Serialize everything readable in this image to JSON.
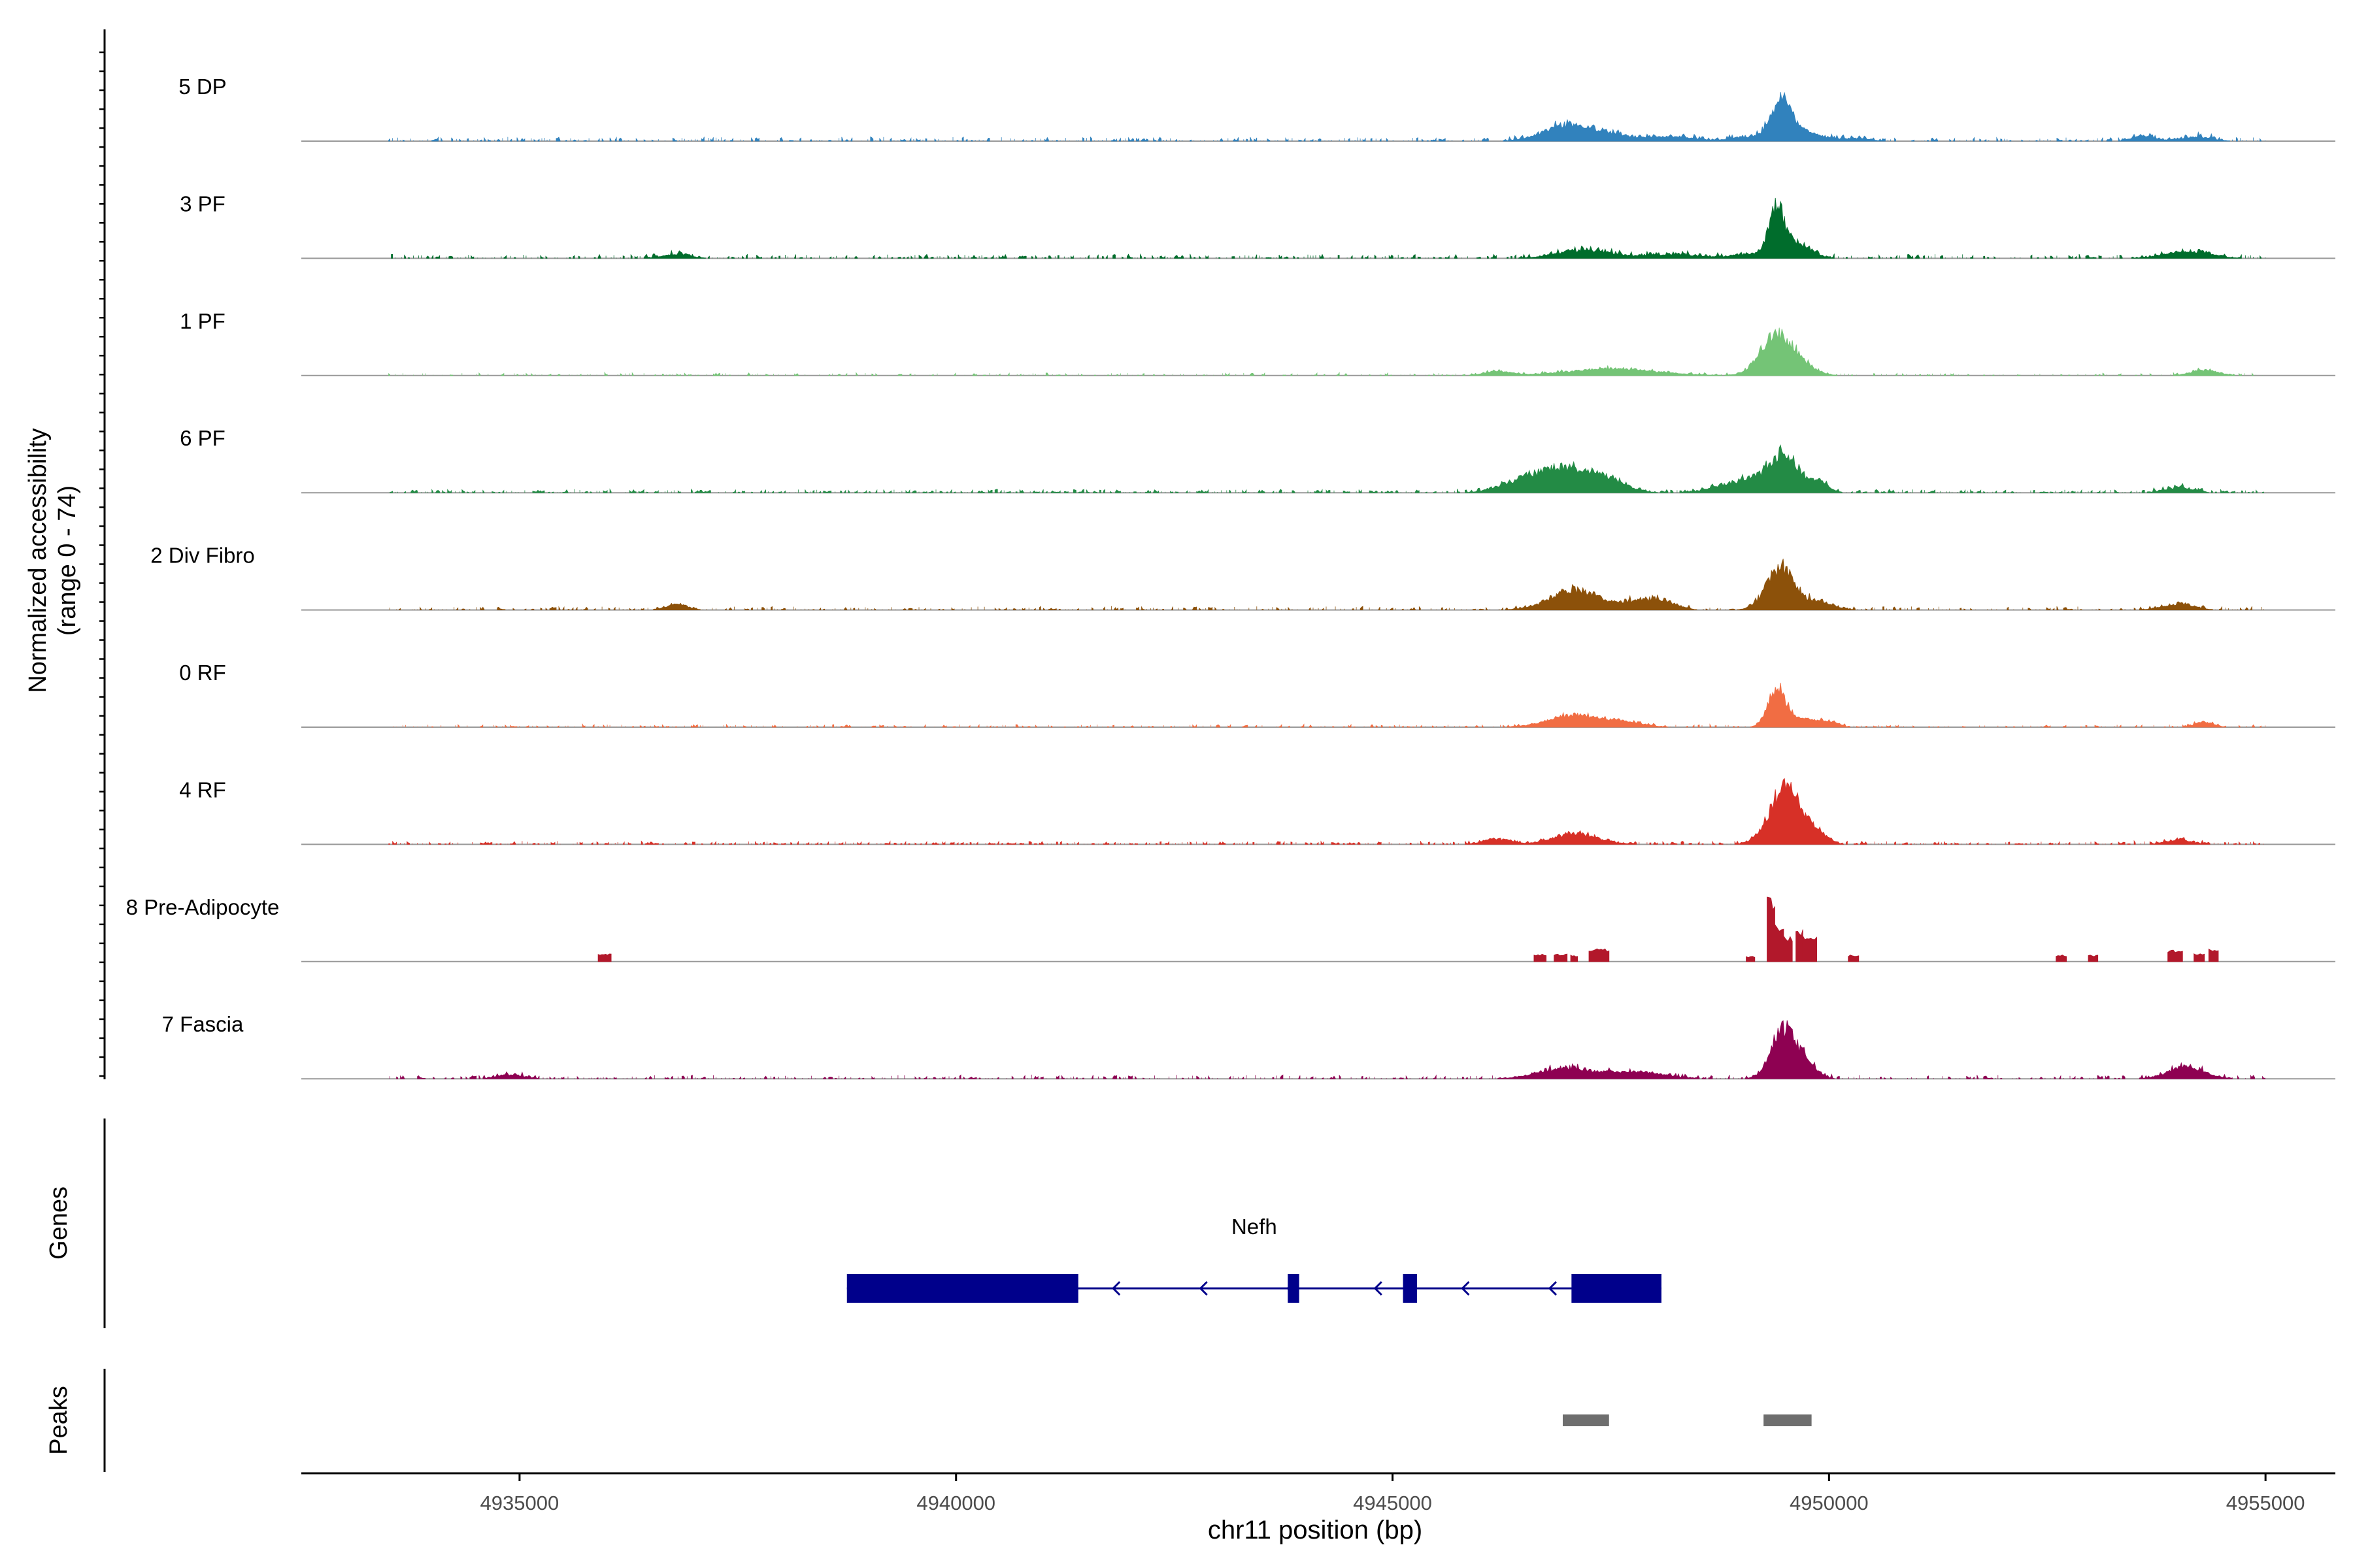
{
  "chart_data": {
    "type": "area",
    "title": "",
    "panels": {
      "coverage_ylabel": [
        "Normalized accessibility",
        "(range 0 - 74)"
      ],
      "genes_label": "Genes",
      "peaks_label": "Peaks"
    },
    "xlabel": "chr11 position (bp)",
    "xlim": [
      4932500,
      4955800
    ],
    "xticks": [
      4935000,
      4940000,
      4945000,
      4950000,
      4955000
    ],
    "ylim": [
      0,
      74
    ],
    "colors": {
      "5 DP": "#3182bd",
      "3 PF": "#006d2c",
      "1 PF": "#74c476",
      "6 PF": "#238b45",
      "2 Div Fibro": "#8c510a",
      "0 RF": "#f16d43",
      "4 RF": "#d73027",
      "8 Pre-Adipocyte": "#b2182b",
      "7 Fascia": "#8e0152",
      "gene": "#00008b",
      "peak": "#6e6e6e",
      "baseline": "#999999",
      "axis": "#000000"
    },
    "tracks": [
      {
        "name": "5 DP",
        "start": 4933500,
        "end": 4955000,
        "baseline": 0.5,
        "noise": 2.4,
        "sparse": 0.55,
        "peaks": [
          [
            4947200,
            350,
            9
          ],
          [
            4946900,
            200,
            5
          ],
          [
            4948200,
            250,
            3
          ],
          [
            4949100,
            220,
            3
          ],
          [
            4949450,
            110,
            28
          ],
          [
            4949700,
            200,
            7
          ],
          [
            4950300,
            150,
            2
          ],
          [
            4953600,
            120,
            4
          ],
          [
            4954200,
            180,
            3
          ]
        ]
      },
      {
        "name": "3 PF",
        "start": 4933500,
        "end": 4955000,
        "baseline": 0.5,
        "noise": 2.4,
        "sparse": 0.5,
        "peaks": [
          [
            4947200,
            300,
            6
          ],
          [
            4948200,
            300,
            3
          ],
          [
            4949400,
            90,
            35
          ],
          [
            4949650,
            150,
            10
          ],
          [
            4949100,
            200,
            3
          ],
          [
            4936800,
            150,
            3
          ],
          [
            4954100,
            250,
            5
          ]
        ]
      },
      {
        "name": "1 PF",
        "start": 4933500,
        "end": 4955000,
        "baseline": 0.3,
        "noise": 1.6,
        "sparse": 0.65,
        "peaks": [
          [
            4947500,
            500,
            5
          ],
          [
            4949400,
            180,
            30
          ],
          [
            4949700,
            150,
            6
          ],
          [
            4946200,
            150,
            3
          ],
          [
            4954300,
            150,
            4
          ]
        ]
      },
      {
        "name": "6 PF",
        "start": 4933500,
        "end": 4955000,
        "baseline": 0.4,
        "noise": 2.0,
        "sparse": 0.45,
        "peaks": [
          [
            4947000,
            300,
            17
          ],
          [
            4946500,
            250,
            8
          ],
          [
            4947500,
            200,
            7
          ],
          [
            4949100,
            300,
            10
          ],
          [
            4949500,
            160,
            26
          ],
          [
            4949900,
            100,
            7
          ],
          [
            4954000,
            150,
            4
          ]
        ]
      },
      {
        "name": "2 Div Fibro",
        "start": 4933500,
        "end": 4955000,
        "baseline": 0.4,
        "noise": 2.0,
        "sparse": 0.55,
        "peaks": [
          [
            4947100,
            280,
            15
          ],
          [
            4947800,
            150,
            6
          ],
          [
            4948100,
            150,
            7
          ],
          [
            4949450,
            160,
            32
          ],
          [
            4949900,
            150,
            6
          ],
          [
            4936800,
            120,
            4
          ],
          [
            4954000,
            180,
            4
          ]
        ]
      },
      {
        "name": "0 RF",
        "start": 4933500,
        "end": 4955000,
        "baseline": 0.3,
        "noise": 1.6,
        "sparse": 0.6,
        "peaks": [
          [
            4947100,
            300,
            9
          ],
          [
            4947700,
            200,
            3
          ],
          [
            4949400,
            100,
            30
          ],
          [
            4949700,
            150,
            6
          ],
          [
            4950000,
            100,
            4
          ],
          [
            4954300,
            100,
            4
          ]
        ]
      },
      {
        "name": "4 RF",
        "start": 4933500,
        "end": 4955000,
        "baseline": 0.4,
        "noise": 1.8,
        "sparse": 0.5,
        "peaks": [
          [
            4947100,
            250,
            8
          ],
          [
            4949500,
            180,
            42
          ],
          [
            4949850,
            120,
            8
          ],
          [
            4946200,
            150,
            4
          ],
          [
            4954000,
            150,
            3
          ]
        ]
      },
      {
        "name": "8 Pre-Adipocyte",
        "start": 4933500,
        "end": 4955000,
        "baseline": 0,
        "noise": 0,
        "sparse": 1,
        "blocks": [
          [
            4935900,
            4936050,
            6
          ],
          [
            4946620,
            4946760,
            6
          ],
          [
            4946850,
            4947000,
            6
          ],
          [
            4947040,
            4947120,
            5
          ],
          [
            4947250,
            4947480,
            10
          ],
          [
            4949050,
            4949150,
            4
          ],
          [
            4949290,
            4949380,
            50
          ],
          [
            4949380,
            4949480,
            28
          ],
          [
            4949480,
            4949580,
            20
          ],
          [
            4949620,
            4949700,
            26
          ],
          [
            4949700,
            4949860,
            20
          ],
          [
            4950220,
            4950340,
            5
          ],
          [
            4952600,
            4952720,
            5
          ],
          [
            4952970,
            4953080,
            5
          ],
          [
            4953880,
            4954050,
            9
          ],
          [
            4954180,
            4954300,
            6
          ],
          [
            4954350,
            4954460,
            10
          ]
        ]
      },
      {
        "name": "7 Fascia",
        "start": 4933500,
        "end": 4955000,
        "baseline": 0.4,
        "noise": 2.2,
        "sparse": 0.55,
        "peaks": [
          [
            4947000,
            300,
            8
          ],
          [
            4947800,
            300,
            5
          ],
          [
            4949500,
            150,
            38
          ],
          [
            4949800,
            100,
            6
          ],
          [
            4934900,
            150,
            3
          ],
          [
            4954100,
            200,
            9
          ]
        ]
      }
    ],
    "gene": {
      "name": "Nefh",
      "strand": "-",
      "start": 4938750,
      "end": 4948080,
      "exons": [
        [
          4938750,
          4941400
        ],
        [
          4943800,
          4943930
        ],
        [
          4945120,
          4945280
        ],
        [
          4947050,
          4948080
        ]
      ],
      "arrows": [
        4941800,
        4942800,
        4943800,
        4944800,
        4945800,
        4946800
      ]
    },
    "peaks": [
      [
        4946950,
        4947480
      ],
      [
        4949250,
        4949800
      ]
    ]
  }
}
